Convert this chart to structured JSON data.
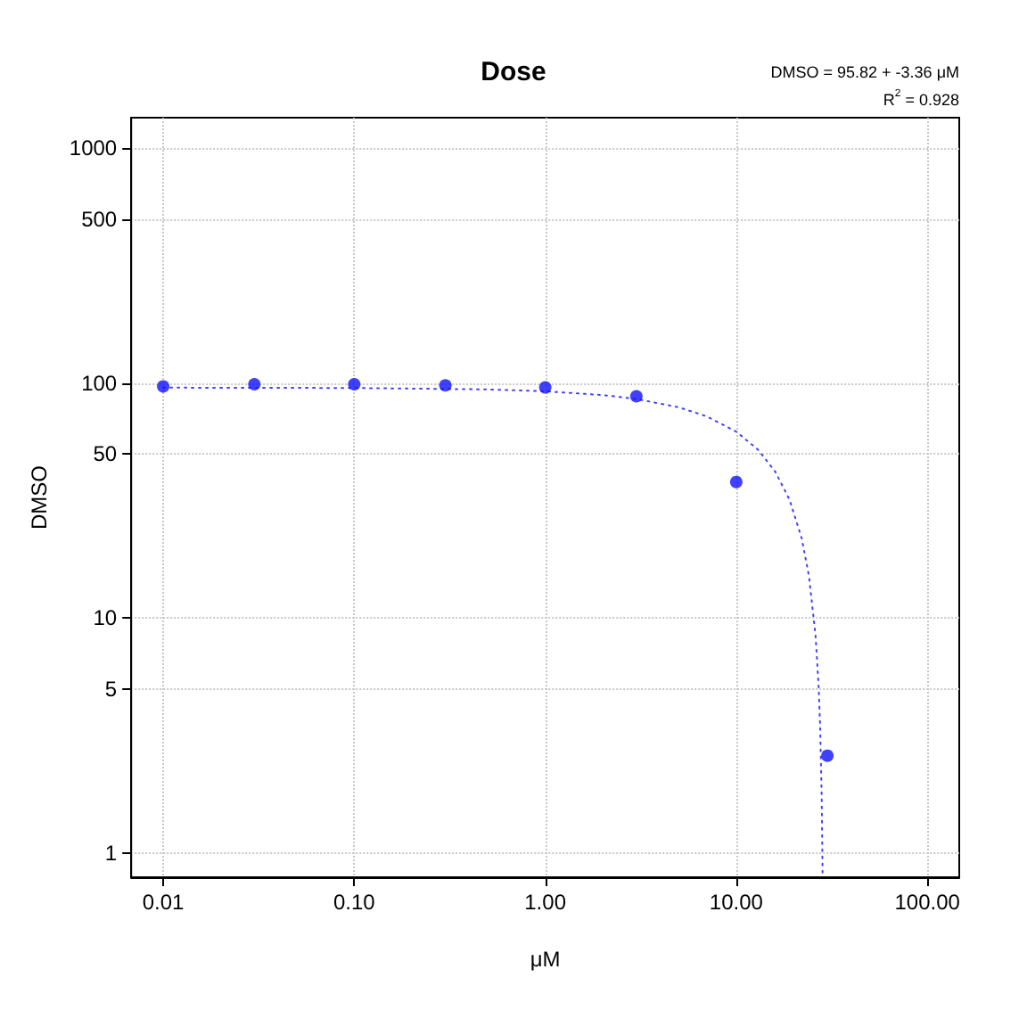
{
  "chart_data": {
    "type": "scatter",
    "title": "Dose",
    "xlabel": "μM",
    "ylabel": "DMSO",
    "annotations": [
      "DMSO = 95.82 + -3.36 μM",
      "R$^{2}$ = 0.928"
    ],
    "x": [
      0.01,
      0.03,
      0.1,
      0.3,
      1,
      3,
      10,
      30
    ],
    "series": [
      {
        "color": "#1010ff",
        "values": [
          97,
          99,
          99,
          98,
          96,
          88,
          38,
          2.6
        ],
        "marker": "circle"
      },
      {
        "type": "line",
        "color": "#4040ff",
        "line_style": "dotted",
        "marker": "none",
        "x": [
          0.01,
          0.1,
          0.5,
          1,
          2,
          3,
          5,
          7,
          10,
          13,
          16,
          19,
          22,
          24,
          26,
          27,
          27.5,
          28,
          28.2,
          28.3
        ],
        "values": [
          95.79,
          95.48,
          94.14,
          92.46,
          89.1,
          85.74,
          79.02,
          72.3,
          62.22,
          52.14,
          42.06,
          31.98,
          21.9,
          15.18,
          8.46,
          5.1,
          3.42,
          1.74,
          1.07,
          0.8
        ]
      }
    ],
    "log": "xy",
    "xlim": [
      0.0068,
      147
    ],
    "ylim": [
      0.79,
      1350
    ],
    "xticks": [
      {
        "value": 0.01,
        "label": "0.01"
      },
      {
        "value": 0.1,
        "label": "0.10"
      },
      {
        "value": 1,
        "label": "1.00"
      },
      {
        "value": 10,
        "label": "10.00"
      },
      {
        "value": 100,
        "label": "100.00"
      }
    ],
    "yticks": [
      1,
      5,
      10,
      50,
      100,
      500,
      1000
    ],
    "grid": true
  }
}
